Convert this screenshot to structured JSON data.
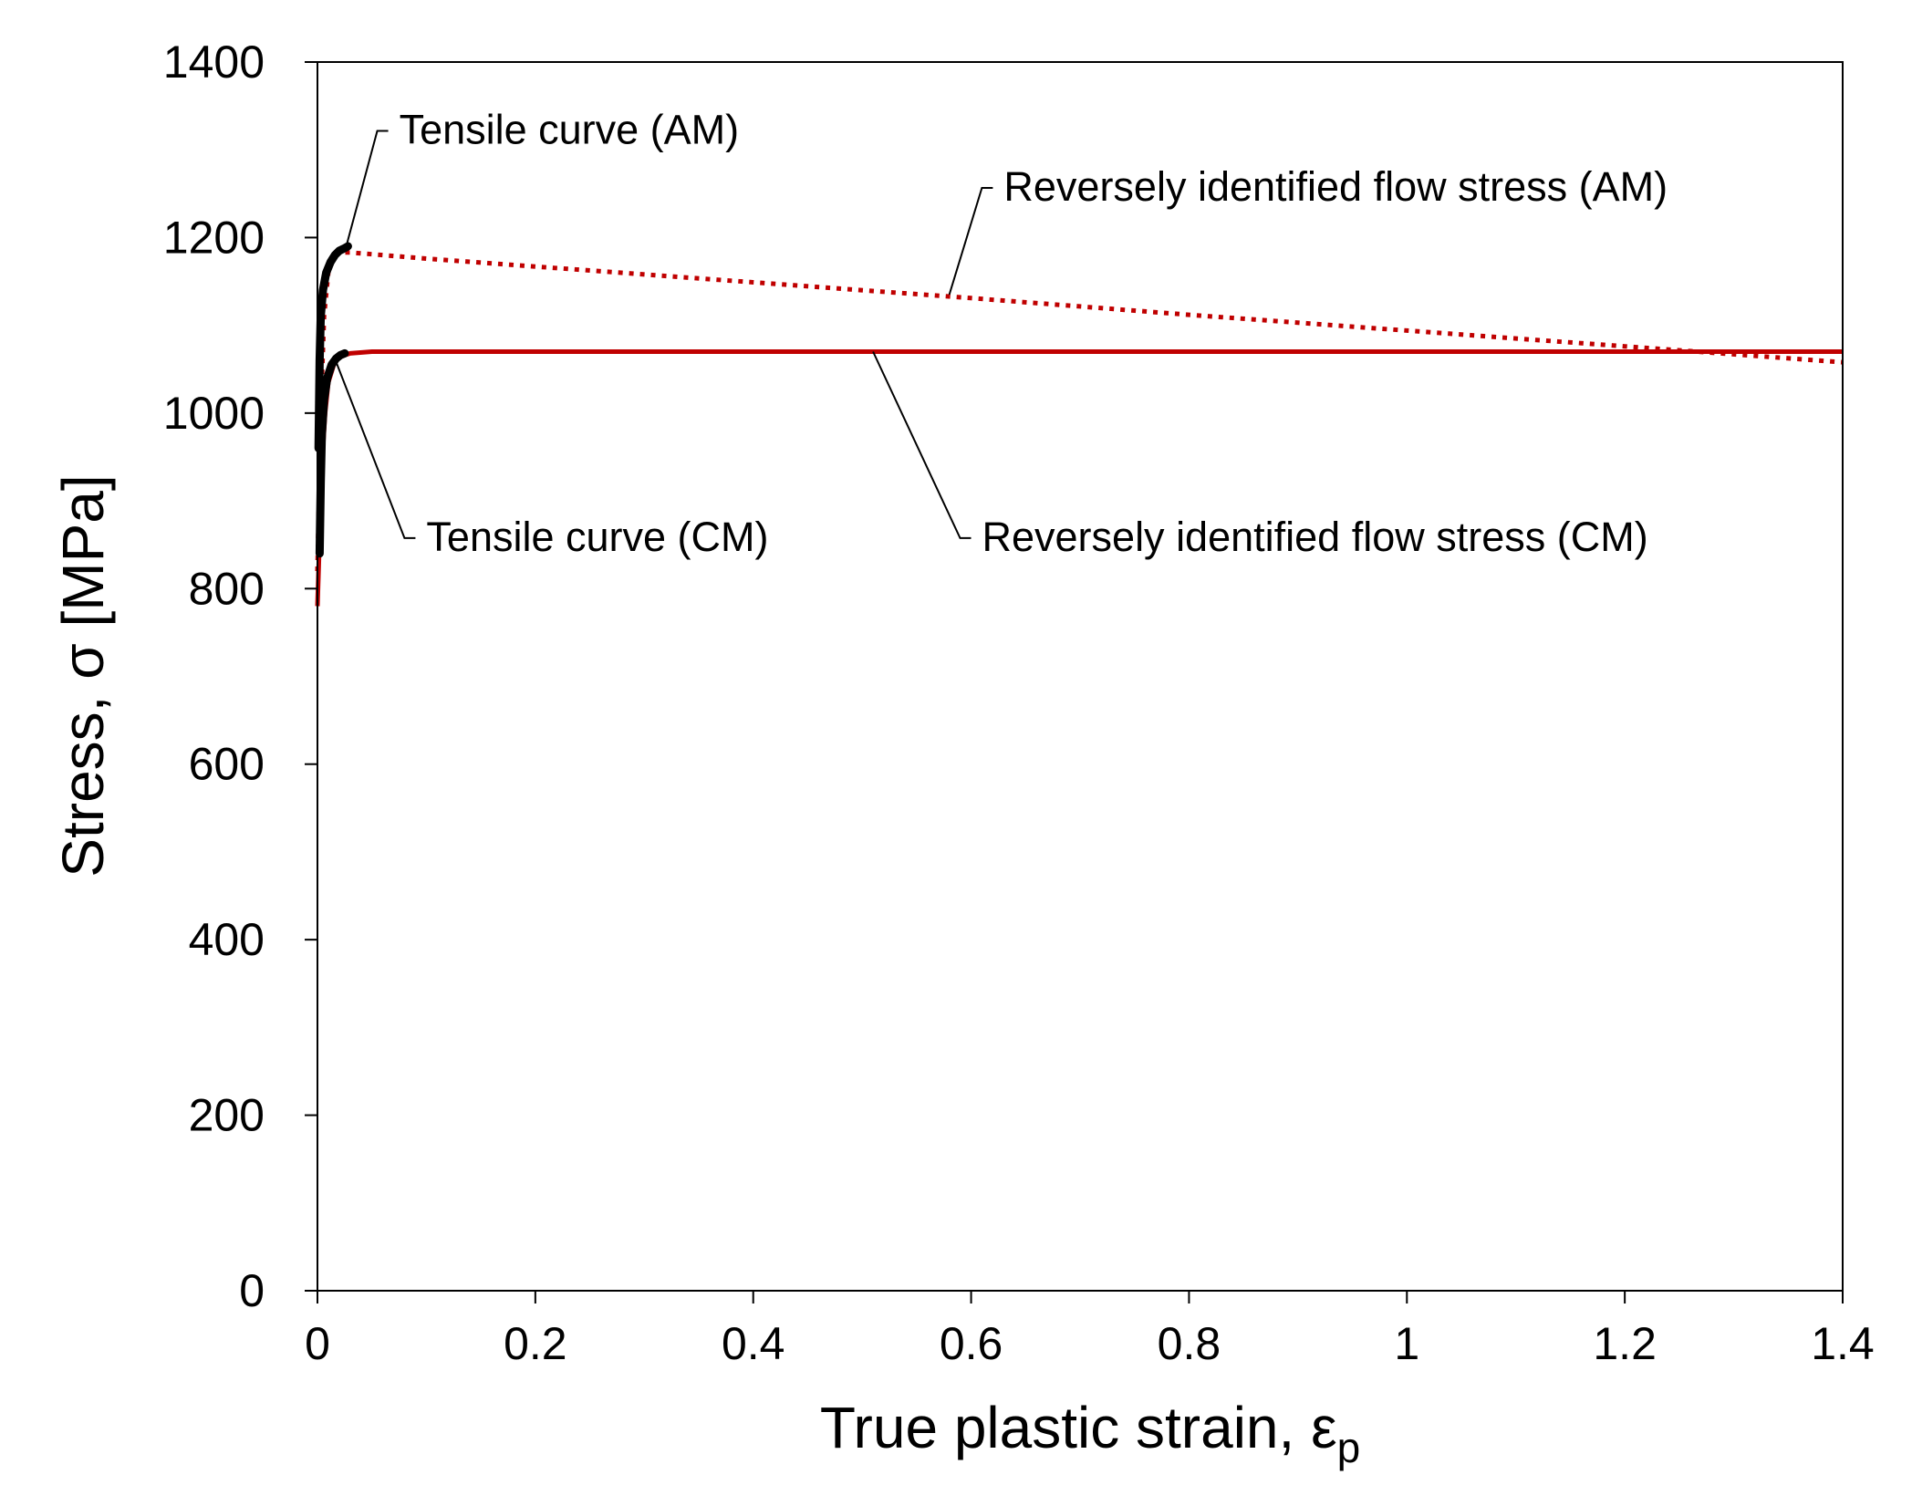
{
  "chart_data": {
    "type": "line",
    "title": "",
    "xlabel": "True plastic strain, ",
    "xlabel_symbol": "ε",
    "xlabel_subscript": "p",
    "ylabel": "Stress, σ [MPa]",
    "xlim": [
      0,
      1.4
    ],
    "ylim": [
      0,
      1400
    ],
    "xticks": [
      0,
      0.2,
      0.4,
      0.6,
      0.8,
      1,
      1.2,
      1.4
    ],
    "xtick_labels": [
      "0",
      "0.2",
      "0.4",
      "0.6",
      "0.8",
      "1",
      "1.2",
      "1.4"
    ],
    "yticks": [
      0,
      200,
      400,
      600,
      800,
      1000,
      1200,
      1400
    ],
    "ytick_labels": [
      "0",
      "200",
      "400",
      "600",
      "800",
      "1000",
      "1200",
      "1400"
    ],
    "grid": false,
    "series": [
      {
        "name": "Tensile curve (AM)",
        "color": "#000000",
        "style": "solid-thick",
        "x": [
          0.001,
          0.002,
          0.003,
          0.005,
          0.008,
          0.012,
          0.016,
          0.02,
          0.025,
          0.028
        ],
        "y": [
          960,
          1060,
          1110,
          1140,
          1160,
          1172,
          1180,
          1185,
          1188,
          1190
        ]
      },
      {
        "name": "Tensile curve (CM)",
        "color": "#000000",
        "style": "solid-thick",
        "x": [
          0.002,
          0.003,
          0.004,
          0.006,
          0.009,
          0.013,
          0.017,
          0.021,
          0.025
        ],
        "y": [
          840,
          920,
          975,
          1015,
          1040,
          1055,
          1062,
          1066,
          1068
        ]
      },
      {
        "name": "Reversely identified flow stress (AM)",
        "color": "#c00000",
        "style": "dotted",
        "x": [
          0.0,
          0.003,
          0.006,
          0.01,
          0.015,
          0.02,
          0.03,
          0.1,
          0.2,
          0.4,
          0.6,
          0.8,
          1.0,
          1.2,
          1.4
        ],
        "y": [
          820,
          1000,
          1110,
          1160,
          1178,
          1183,
          1183,
          1176,
          1167,
          1149,
          1131,
          1112,
          1094,
          1076,
          1058
        ]
      },
      {
        "name": "Reversely identified flow stress (CM)",
        "color": "#c00000",
        "style": "solid",
        "x": [
          0.0,
          0.002,
          0.004,
          0.007,
          0.01,
          0.015,
          0.02,
          0.03,
          0.05,
          0.1,
          1.4
        ],
        "y": [
          780,
          860,
          940,
          1000,
          1035,
          1055,
          1064,
          1068,
          1070,
          1070,
          1070
        ]
      }
    ],
    "annotations": [
      {
        "text": "Tensile curve (AM)",
        "target": [
          0.026,
          1188
        ],
        "label_at": [
          0.075,
          1307
        ]
      },
      {
        "text": "Reversely identified flow stress (AM)",
        "target": [
          0.58,
          1135
        ],
        "label_at": [
          0.63,
          1242
        ]
      },
      {
        "text": "Tensile curve (CM)",
        "target": [
          0.016,
          1062
        ],
        "label_at": [
          0.1,
          843
        ]
      },
      {
        "text": "Reversely identified flow stress (CM)",
        "target": [
          0.51,
          1070
        ],
        "label_at": [
          0.61,
          843
        ]
      }
    ]
  }
}
